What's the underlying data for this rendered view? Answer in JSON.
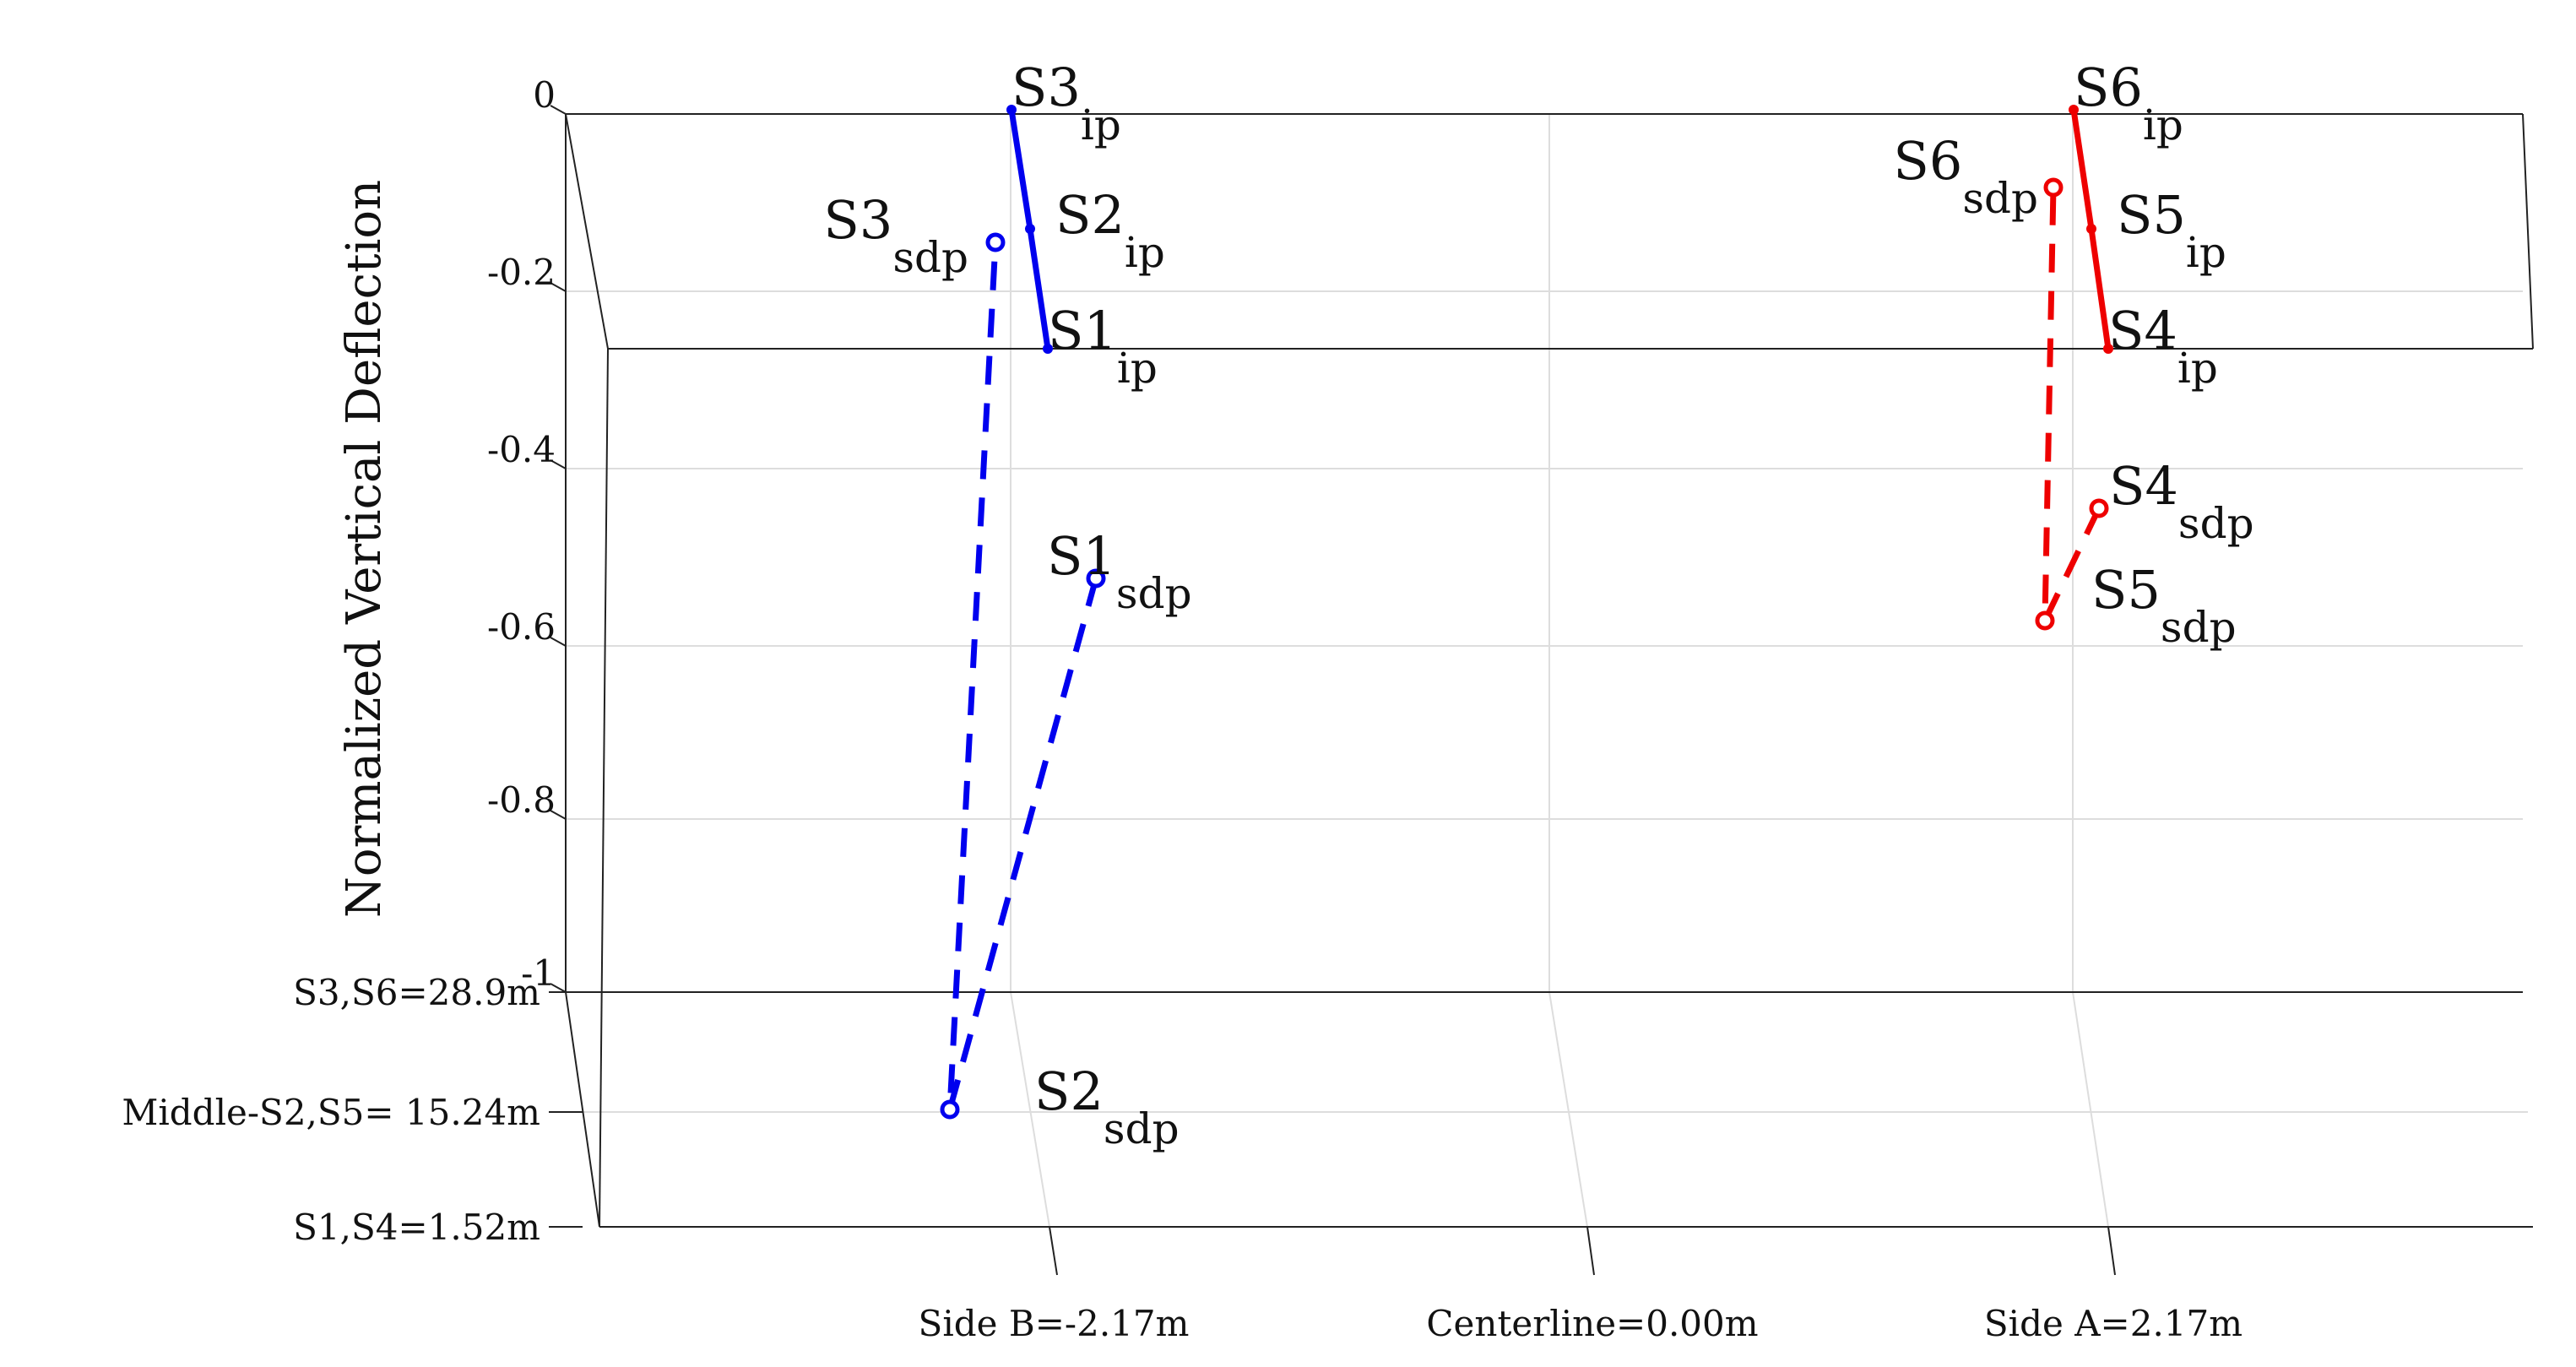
{
  "chart_data": {
    "type": "line",
    "ylabel": "Normalized Vertical Deflection",
    "y_ticks": [
      "0",
      "-0.2",
      "-0.4",
      "-0.6",
      "-0.8",
      "-1"
    ],
    "x_ticks": [
      "Side B=-2.17m",
      "Centerline=0.00m",
      "Side A=2.17m"
    ],
    "z_ticks": [
      "S3,S6=28.9m",
      "Middle-S2,S5= 15.24m",
      "S1,S4=1.52m"
    ],
    "grid": true,
    "colors": {
      "side_b": "#0000ee",
      "side_a": "#ee0000",
      "axes": "#222222",
      "grid": "#dddddd"
    },
    "series": [
      {
        "group": "side_b",
        "style": "solid",
        "points": [
          {
            "station": "S1",
            "sub": "ip",
            "x": -2.17,
            "z": 1.52,
            "y": 0
          },
          {
            "station": "S2",
            "sub": "ip",
            "x": -2.17,
            "z": 15.24,
            "y": 0
          },
          {
            "station": "S3",
            "sub": "ip",
            "x": -2.17,
            "z": 28.9,
            "y": 0
          }
        ]
      },
      {
        "group": "side_b",
        "style": "dashed",
        "points": [
          {
            "station": "S1",
            "sub": "sdp",
            "x": -2.17,
            "z": 1.52,
            "y": -0.6
          },
          {
            "station": "S2",
            "sub": "sdp",
            "x": -2.17,
            "z": 15.24,
            "y": -1.13
          },
          {
            "station": "S3",
            "sub": "sdp",
            "x": -2.17,
            "z": 28.9,
            "y": -0.25
          }
        ]
      },
      {
        "group": "side_a",
        "style": "solid",
        "points": [
          {
            "station": "S4",
            "sub": "ip",
            "x": 2.17,
            "z": 1.52,
            "y": 0
          },
          {
            "station": "S5",
            "sub": "ip",
            "x": 2.17,
            "z": 15.24,
            "y": 0
          },
          {
            "station": "S6",
            "sub": "ip",
            "x": 2.17,
            "z": 28.9,
            "y": 0
          }
        ]
      },
      {
        "group": "side_a",
        "style": "dashed",
        "points": [
          {
            "station": "S4",
            "sub": "sdp",
            "x": 2.17,
            "z": 1.52,
            "y": -0.53
          },
          {
            "station": "S5",
            "sub": "sdp",
            "x": 2.17,
            "z": 15.24,
            "y": -0.61
          },
          {
            "station": "S6",
            "sub": "sdp",
            "x": 2.17,
            "z": 28.9,
            "y": -0.15
          }
        ]
      }
    ]
  }
}
